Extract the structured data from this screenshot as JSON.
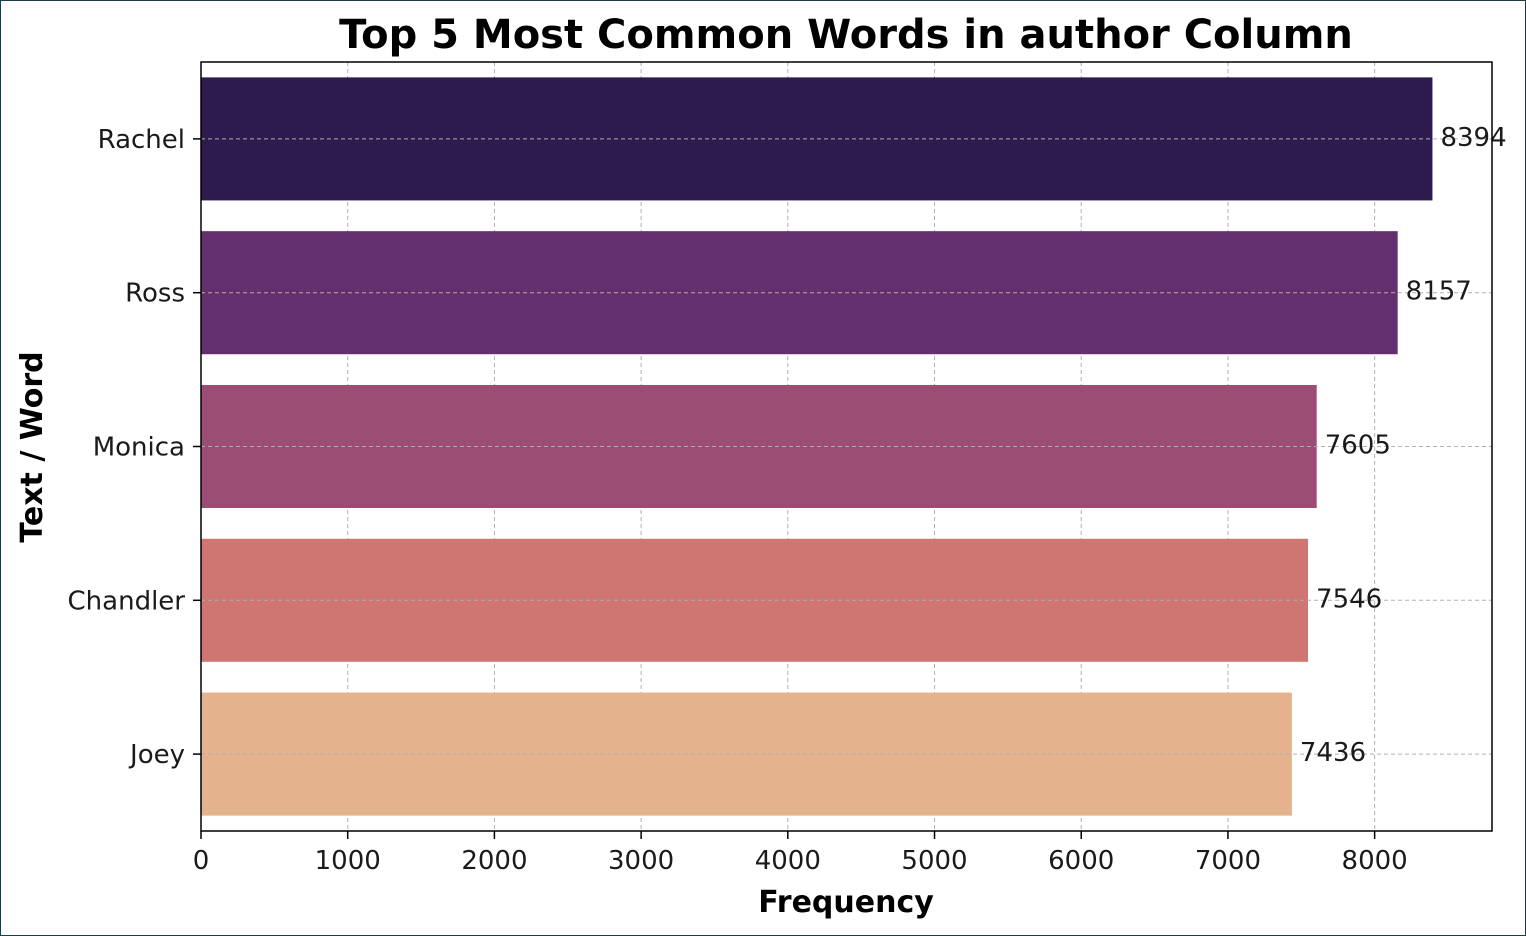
{
  "chart_data": {
    "type": "bar",
    "orientation": "horizontal",
    "title": "Top 5 Most Common Words in author Column",
    "xlabel": "Frequency",
    "ylabel": "Text / Word",
    "categories": [
      "Rachel",
      "Ross",
      "Monica",
      "Chandler",
      "Joey"
    ],
    "values": [
      8394,
      8157,
      7605,
      7546,
      7436
    ],
    "data_labels": [
      "8394",
      "8157",
      "7605",
      "7546",
      "7436"
    ],
    "colors": [
      "#2d1b4f",
      "#632f6c",
      "#9b4d74",
      "#cf7672",
      "#e4b28d"
    ],
    "xlim": [
      0,
      8800
    ],
    "xticks": [
      0,
      1000,
      2000,
      3000,
      4000,
      5000,
      6000,
      7000,
      8000
    ],
    "xtick_labels": [
      "0",
      "1000",
      "2000",
      "3000",
      "4000",
      "5000",
      "6000",
      "7000",
      "8000"
    ],
    "grid": true
  }
}
